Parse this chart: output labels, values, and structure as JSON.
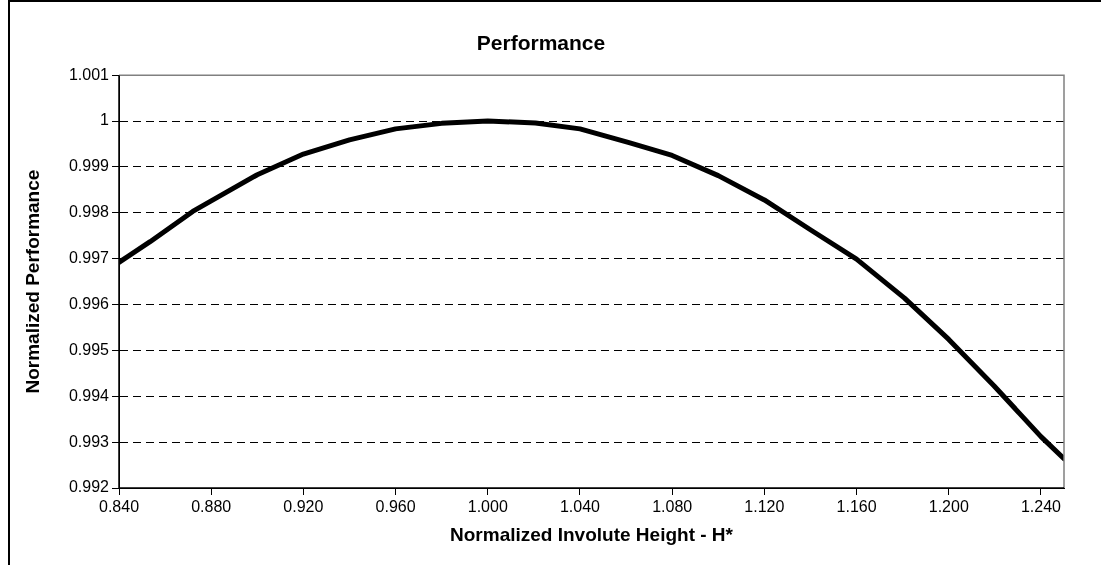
{
  "chart_data": {
    "type": "line",
    "title": "Performance",
    "xlabel": "Normalized Involute Height - H*",
    "ylabel": "Normalized Performance",
    "x": [
      0.84,
      0.8535,
      0.872,
      0.88,
      0.9,
      0.92,
      0.94,
      0.96,
      0.98,
      1.0,
      1.0207,
      1.04,
      1.0613,
      1.08,
      1.1,
      1.12,
      1.1403,
      1.16,
      1.1808,
      1.2,
      1.2196,
      1.24,
      1.25
    ],
    "series": [
      {
        "color": "#000000",
        "values": [
          0.99692,
          0.99737,
          0.99803,
          0.99826,
          0.99883,
          0.99928,
          0.99959,
          0.99983,
          0.99995,
          1.0,
          0.99996,
          0.99983,
          0.99953,
          0.99925,
          0.99881,
          0.99828,
          0.99762,
          0.99699,
          0.99614,
          0.99524,
          0.99423,
          0.99312,
          0.99264
        ]
      }
    ],
    "xlim": [
      0.84,
      1.25
    ],
    "xticks": [
      {
        "value": 0.84,
        "label": "0.840"
      },
      {
        "value": 0.88,
        "label": "0.880"
      },
      {
        "value": 0.92,
        "label": "0.920"
      },
      {
        "value": 0.96,
        "label": "0.960"
      },
      {
        "value": 1.0,
        "label": "1.000"
      },
      {
        "value": 1.04,
        "label": "1.040"
      },
      {
        "value": 1.08,
        "label": "1.080"
      },
      {
        "value": 1.12,
        "label": "1.120"
      },
      {
        "value": 1.16,
        "label": "1.160"
      },
      {
        "value": 1.2,
        "label": "1.200"
      },
      {
        "value": 1.24,
        "label": "1.240"
      }
    ],
    "ylim": [
      0.992,
      1.001
    ],
    "yticks": [
      0.992,
      0.993,
      0.994,
      0.995,
      0.996,
      0.997,
      0.998,
      0.999,
      1,
      1.001
    ],
    "grid": "y",
    "legend": false,
    "marker": "none",
    "line_style": "solid"
  }
}
